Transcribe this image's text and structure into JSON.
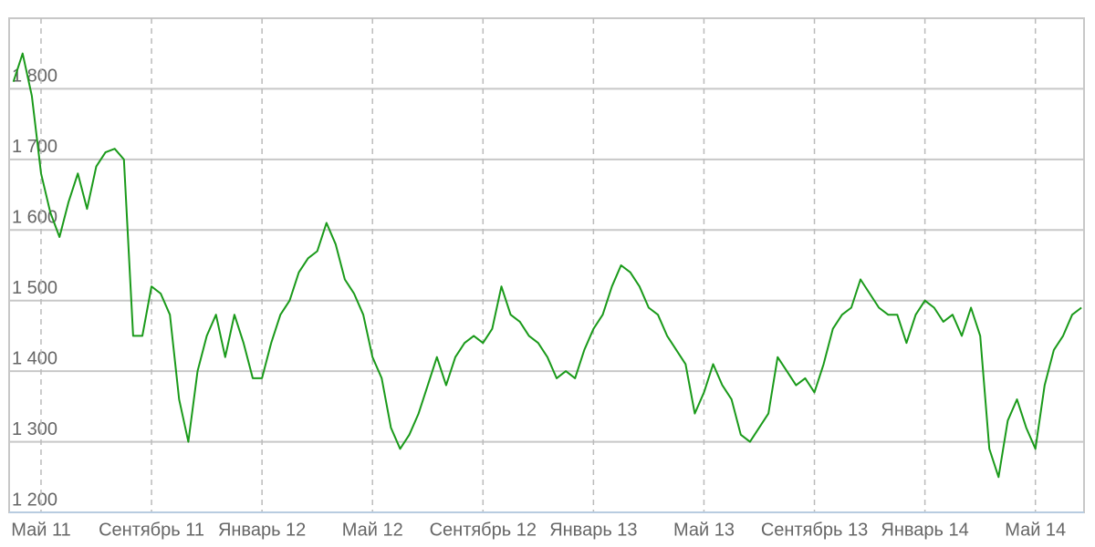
{
  "chart_data": {
    "type": "line",
    "categories": [
      null,
      null,
      null,
      "Май 11",
      null,
      null,
      null,
      null,
      null,
      null,
      null,
      null,
      null,
      null,
      null,
      "Сентябрь 11",
      null,
      null,
      null,
      null,
      null,
      null,
      null,
      null,
      null,
      null,
      null,
      "Январь 12",
      null,
      null,
      null,
      null,
      null,
      null,
      null,
      null,
      null,
      null,
      null,
      "Май 12",
      null,
      null,
      null,
      null,
      null,
      null,
      null,
      null,
      null,
      null,
      null,
      "Сентябрь 12",
      null,
      null,
      null,
      null,
      null,
      null,
      null,
      null,
      null,
      null,
      null,
      "Январь 13",
      null,
      null,
      null,
      null,
      null,
      null,
      null,
      null,
      null,
      null,
      null,
      "Май 13",
      null,
      null,
      null,
      null,
      null,
      null,
      null,
      null,
      null,
      null,
      null,
      "Сентябрь 13",
      null,
      null,
      null,
      null,
      null,
      null,
      null,
      null,
      null,
      null,
      null,
      "Январь 14",
      null,
      null,
      null,
      null,
      null,
      null,
      null,
      null,
      null,
      null,
      null,
      "Май 14",
      null,
      null,
      null,
      null,
      null
    ],
    "values": [
      1810,
      1850,
      1790,
      1680,
      1625,
      1590,
      1640,
      1680,
      1630,
      1690,
      1710,
      1715,
      1700,
      1450,
      1450,
      1520,
      1510,
      1480,
      1360,
      1300,
      1400,
      1450,
      1480,
      1420,
      1480,
      1440,
      1390,
      1390,
      1440,
      1480,
      1500,
      1540,
      1560,
      1570,
      1610,
      1580,
      1530,
      1510,
      1480,
      1420,
      1390,
      1320,
      1290,
      1310,
      1340,
      1380,
      1420,
      1380,
      1420,
      1440,
      1450,
      1440,
      1460,
      1520,
      1480,
      1470,
      1450,
      1440,
      1420,
      1390,
      1400,
      1390,
      1430,
      1460,
      1480,
      1520,
      1550,
      1540,
      1520,
      1490,
      1480,
      1450,
      1430,
      1410,
      1340,
      1370,
      1410,
      1380,
      1360,
      1310,
      1300,
      1320,
      1340,
      1420,
      1400,
      1380,
      1390,
      1370,
      1410,
      1460,
      1480,
      1490,
      1530,
      1510,
      1490,
      1480,
      1480,
      1440,
      1480,
      1500,
      1490,
      1470,
      1480,
      1450,
      1490,
      1450,
      1290,
      1250,
      1330,
      1360,
      1320,
      1290,
      1380,
      1430,
      1450,
      1480,
      1490
    ],
    "color": "#1a9a1a",
    "ylim": [
      1200,
      1900
    ],
    "yticks": [
      {
        "value": 1200,
        "label": "1 200"
      },
      {
        "value": 1300,
        "label": "1 300"
      },
      {
        "value": 1400,
        "label": "1 400"
      },
      {
        "value": 1500,
        "label": "1 500"
      },
      {
        "value": 1600,
        "label": "1 600"
      },
      {
        "value": 1700,
        "label": "1 700"
      },
      {
        "value": 1800,
        "label": "1 800"
      }
    ],
    "grid": true
  }
}
